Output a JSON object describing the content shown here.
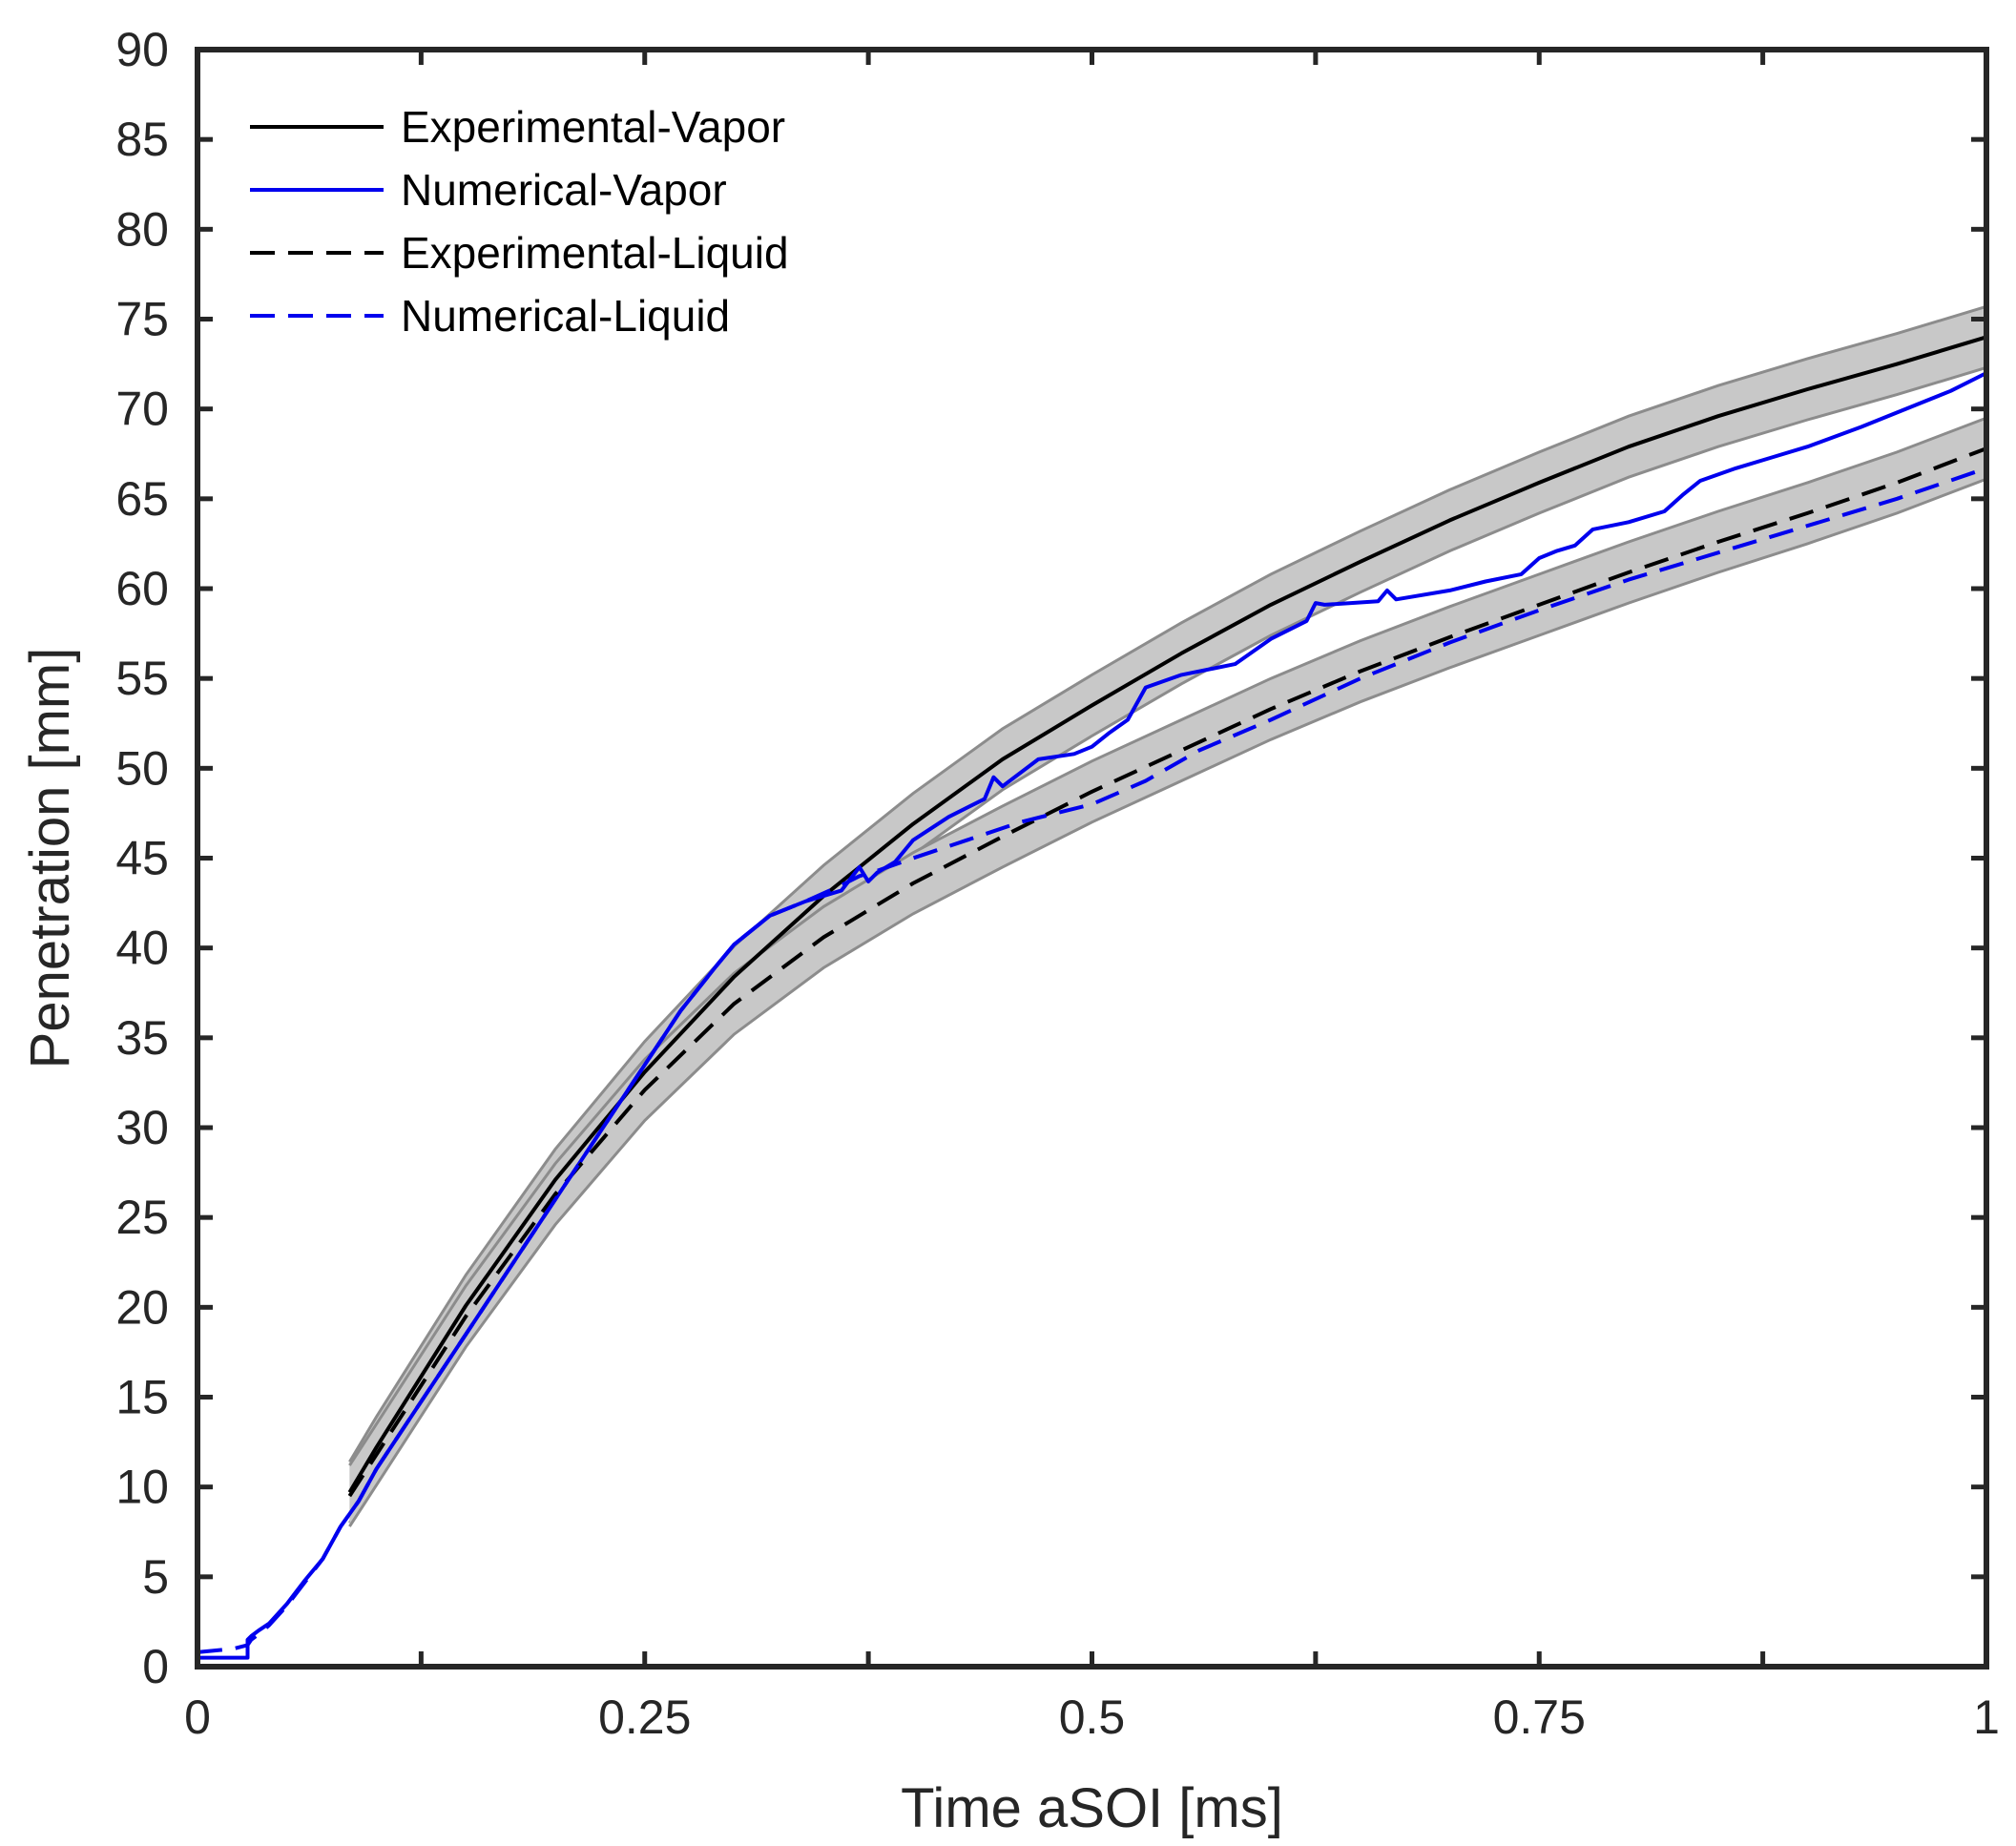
{
  "chart_data": {
    "type": "line",
    "title": "",
    "xlabel": "Time aSOI [ms]",
    "ylabel": "Penetration [mm]",
    "xlim": [
      0,
      1
    ],
    "ylim": [
      0,
      90
    ],
    "xticks": [
      0,
      0.25,
      0.5,
      0.75,
      1
    ],
    "xtick_labels": [
      "0",
      "0.25",
      "0.5",
      "0.75",
      "1"
    ],
    "yticks": [
      0,
      5,
      10,
      15,
      20,
      25,
      30,
      35,
      40,
      45,
      50,
      55,
      60,
      65,
      70,
      75,
      80,
      85,
      90
    ],
    "ytick_labels": [
      "0",
      "5",
      "10",
      "15",
      "20",
      "25",
      "30",
      "35",
      "40",
      "45",
      "50",
      "55",
      "60",
      "65",
      "70",
      "75",
      "80",
      "85",
      "90"
    ],
    "grid": false,
    "legend_position": "top-left",
    "colors": {
      "experimental": "#000000",
      "numerical": "#0000ee",
      "band_fill": "#c8c8c8",
      "band_edge": "#8c8c8c",
      "axis": "#262626"
    },
    "series": [
      {
        "name": "Experimental-Vapor",
        "color": "#000000",
        "dash": "solid",
        "x": [
          0.085,
          0.1,
          0.15,
          0.2,
          0.25,
          0.3,
          0.35,
          0.4,
          0.45,
          0.5,
          0.55,
          0.6,
          0.65,
          0.7,
          0.75,
          0.8,
          0.85,
          0.9,
          0.95,
          1.0
        ],
        "y": [
          9.7,
          12.2,
          20.1,
          27.1,
          33.1,
          38.4,
          42.9,
          46.9,
          50.5,
          53.5,
          56.4,
          59.1,
          61.5,
          63.8,
          65.9,
          67.9,
          69.6,
          71.1,
          72.5,
          74.0
        ],
        "band_width": 1.7
      },
      {
        "name": "Numerical-Vapor",
        "color": "#0000ee",
        "dash": "solid",
        "x": [
          0,
          0.02,
          0.028,
          0.028,
          0.03,
          0.034,
          0.04,
          0.05,
          0.06,
          0.07,
          0.08,
          0.09,
          0.1,
          0.12,
          0.15,
          0.18,
          0.2,
          0.22,
          0.25,
          0.27,
          0.29,
          0.3,
          0.32,
          0.34,
          0.36,
          0.37,
          0.375,
          0.38,
          0.39,
          0.4,
          0.42,
          0.44,
          0.445,
          0.45,
          0.47,
          0.49,
          0.5,
          0.51,
          0.52,
          0.53,
          0.55,
          0.58,
          0.6,
          0.62,
          0.625,
          0.63,
          0.66,
          0.665,
          0.67,
          0.7,
          0.72,
          0.74,
          0.75,
          0.76,
          0.77,
          0.78,
          0.8,
          0.82,
          0.83,
          0.84,
          0.86,
          0.88,
          0.9,
          0.93,
          0.96,
          0.98,
          1.0
        ],
        "y": [
          0.5,
          0.5,
          0.5,
          1.5,
          1.7,
          2.0,
          2.4,
          3.5,
          4.8,
          6.0,
          7.8,
          9.2,
          11.0,
          14.0,
          18.5,
          23.0,
          26.0,
          29.0,
          33.5,
          36.5,
          39.0,
          40.2,
          41.8,
          42.6,
          43.2,
          44.5,
          43.7,
          44.2,
          44.8,
          46.0,
          47.3,
          48.3,
          49.5,
          49.0,
          50.5,
          50.8,
          51.2,
          52.0,
          52.7,
          54.5,
          55.2,
          55.8,
          57.2,
          58.2,
          59.2,
          59.1,
          59.3,
          59.9,
          59.4,
          59.9,
          60.4,
          60.8,
          61.7,
          62.1,
          62.4,
          63.3,
          63.7,
          64.3,
          65.2,
          66.0,
          66.7,
          67.3,
          67.9,
          69.0,
          70.2,
          71.0,
          72.0
        ]
      },
      {
        "name": "Experimental-Liquid",
        "color": "#000000",
        "dash": "dashed",
        "x": [
          0.085,
          0.1,
          0.15,
          0.2,
          0.25,
          0.3,
          0.35,
          0.4,
          0.45,
          0.5,
          0.55,
          0.6,
          0.65,
          0.7,
          0.75,
          0.8,
          0.85,
          0.9,
          0.95,
          1.0
        ],
        "y": [
          9.5,
          11.8,
          19.5,
          26.3,
          32.1,
          36.9,
          40.6,
          43.6,
          46.2,
          48.7,
          51.0,
          53.3,
          55.4,
          57.3,
          59.1,
          60.9,
          62.6,
          64.2,
          65.9,
          67.8
        ],
        "band_width": 1.7
      },
      {
        "name": "Numerical-Liquid",
        "color": "#0000ee",
        "dash": "dashed",
        "x": [
          0,
          0.02,
          0.028,
          0.03,
          0.034,
          0.04,
          0.05,
          0.06,
          0.07,
          0.08,
          0.09,
          0.1,
          0.12,
          0.15,
          0.18,
          0.2,
          0.22,
          0.25,
          0.27,
          0.29,
          0.3,
          0.32,
          0.34,
          0.36,
          0.37,
          0.38,
          0.4,
          0.43,
          0.46,
          0.5,
          0.53,
          0.56,
          0.6,
          0.65,
          0.7,
          0.75,
          0.8,
          0.85,
          0.9,
          0.95,
          1.0
        ],
        "y": [
          0.8,
          1.0,
          1.2,
          1.5,
          1.8,
          2.3,
          3.4,
          4.7,
          6.0,
          7.8,
          9.2,
          11.0,
          14.0,
          18.5,
          23.0,
          26.0,
          29.0,
          33.5,
          36.5,
          39.0,
          40.2,
          41.8,
          42.6,
          43.5,
          44.0,
          44.3,
          45.0,
          46.0,
          47.0,
          48.0,
          49.3,
          51.0,
          52.7,
          55.0,
          57.0,
          58.8,
          60.5,
          62.0,
          63.5,
          65.0,
          66.7
        ]
      }
    ]
  }
}
